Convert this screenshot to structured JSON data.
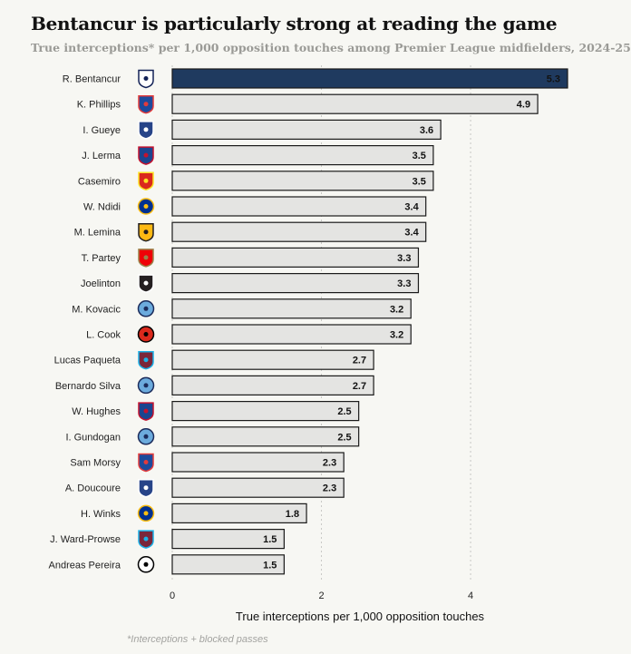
{
  "title": "Bentancur is particularly strong at reading the game",
  "subtitle": "True interceptions* per 1,000 opposition touches among Premier League midfielders, 2024-25",
  "footnote": "*Interceptions + blocked passes",
  "colors": {
    "highlight": "#1f3a5f",
    "bar": "#e4e4e2",
    "bar_stroke": "#1a1a1a",
    "grid": "#c8c8c4"
  },
  "chart_data": {
    "type": "bar",
    "orientation": "horizontal",
    "categories": [
      "R. Bentancur",
      "K. Phillips",
      "I. Gueye",
      "J. Lerma",
      "Casemiro",
      "W. Ndidi",
      "M. Lemina",
      "T. Partey",
      "Joelinton",
      "M. Kovacic",
      "L. Cook",
      "Lucas Paqueta",
      "Bernardo Silva",
      "W. Hughes",
      "I. Gundogan",
      "Sam Morsy",
      "A. Doucoure",
      "H. Winks",
      "J. Ward-Prowse",
      "Andreas Pereira"
    ],
    "values": [
      5.3,
      4.9,
      3.6,
      3.5,
      3.5,
      3.4,
      3.4,
      3.3,
      3.3,
      3.2,
      3.2,
      2.7,
      2.7,
      2.5,
      2.5,
      2.3,
      2.3,
      1.8,
      1.5,
      1.5
    ],
    "value_labels": [
      "5.3",
      "4.9",
      "3.6",
      "3.5",
      "3.5",
      "3.4",
      "3.4",
      "3.3",
      "3.3",
      "3.2",
      "3.2",
      "2.7",
      "2.7",
      "2.5",
      "2.5",
      "2.3",
      "2.3",
      "1.8",
      "1.5",
      "1.5"
    ],
    "club_icons": [
      "tottenham-crest",
      "ipswich-crest",
      "everton-crest",
      "crystal-palace-crest",
      "man-united-crest",
      "leicester-crest",
      "wolves-crest",
      "arsenal-crest",
      "newcastle-crest",
      "man-city-crest",
      "bournemouth-crest",
      "west-ham-crest",
      "man-city-crest",
      "crystal-palace-crest",
      "man-city-crest",
      "ipswich-crest",
      "everton-crest",
      "leicester-crest",
      "west-ham-crest",
      "fulham-crest"
    ],
    "highlight_index": 0,
    "xlabel": "True interceptions per 1,000 opposition touches",
    "ylabel": "",
    "xlim": [
      0,
      5.3
    ],
    "xticks": [
      0,
      2,
      4
    ],
    "xtick_labels": [
      "0",
      "2",
      "4"
    ],
    "grid": true
  }
}
